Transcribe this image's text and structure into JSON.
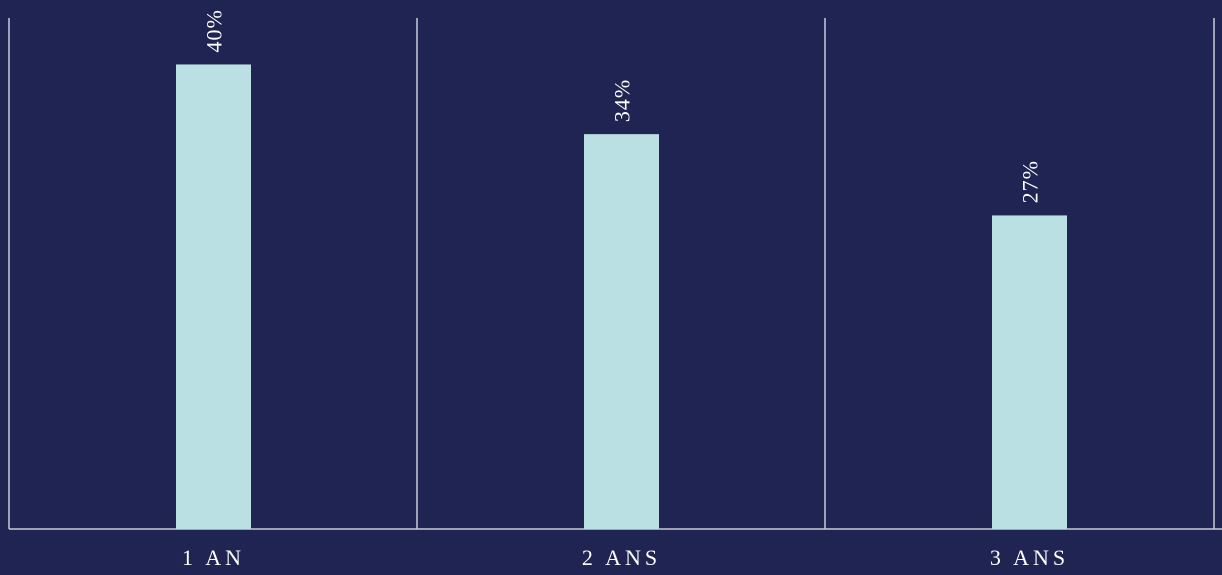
{
  "chart_data": {
    "type": "bar",
    "categories": [
      "1 AN",
      "2 ANS",
      "3 ANS"
    ],
    "values": [
      40,
      34,
      27
    ],
    "value_labels": [
      "40%",
      "34%",
      "27%"
    ],
    "title": "",
    "xlabel": "",
    "ylabel": "",
    "ylim": [
      0,
      44
    ],
    "grid": false,
    "legend": "none",
    "colors": {
      "background": "#202453",
      "bar": "#bae0e3",
      "text": "#ffffff",
      "lines": "#c9cbd8"
    }
  }
}
